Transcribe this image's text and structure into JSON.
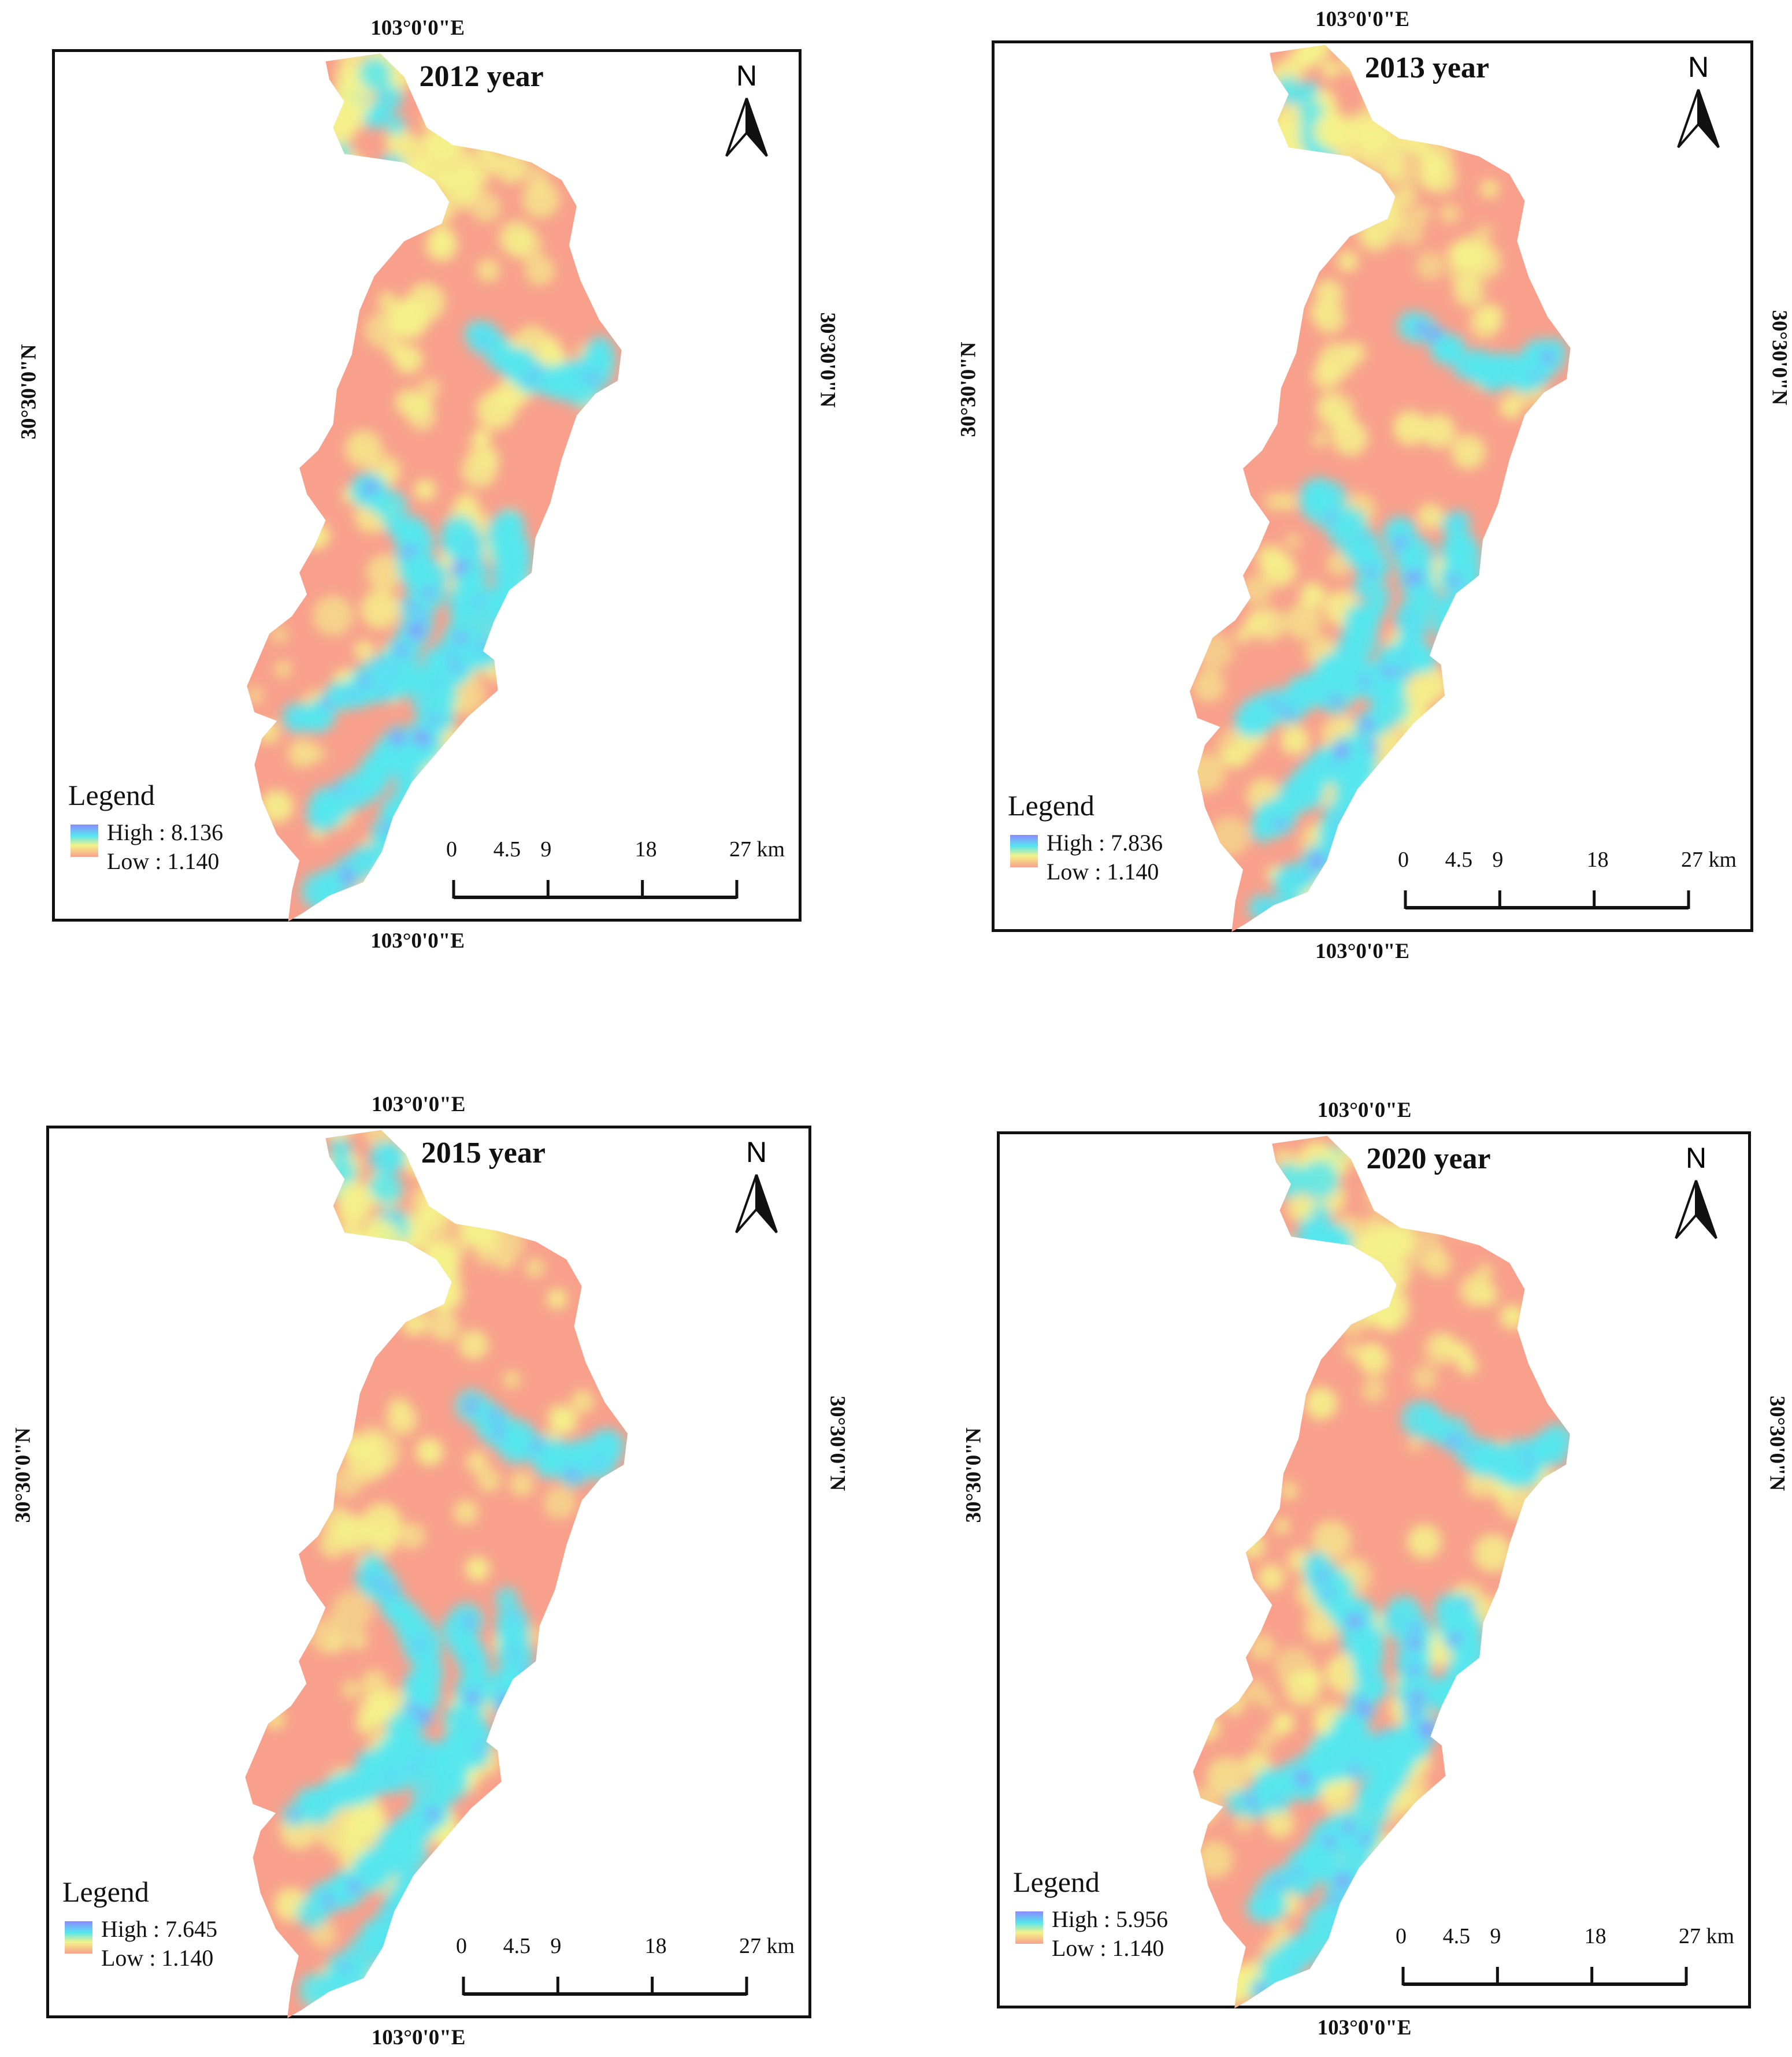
{
  "labels": {
    "lon": "103°0'0\"E",
    "lat": "30°30'0\"N"
  },
  "legend": {
    "title": "Legend",
    "high_prefix": "High : ",
    "low_prefix": "Low : "
  },
  "north_letter": "N",
  "scale": {
    "ticks": [
      "0",
      "4.5",
      "9",
      "18",
      "27 km"
    ]
  },
  "colors": {
    "high": "#8a8aff",
    "mid_high": "#56e6ee",
    "mid_low": "#f4f28a",
    "low": "#f8a08c"
  },
  "panels": [
    {
      "title": "2012 year",
      "high": "8.136",
      "low": "1.140"
    },
    {
      "title": "2013 year",
      "high": "7.836",
      "low": "1.140"
    },
    {
      "title": "2015 year",
      "high": "7.645",
      "low": "1.140"
    },
    {
      "title": "2020 year",
      "high": "5.956",
      "low": "1.140"
    }
  ]
}
